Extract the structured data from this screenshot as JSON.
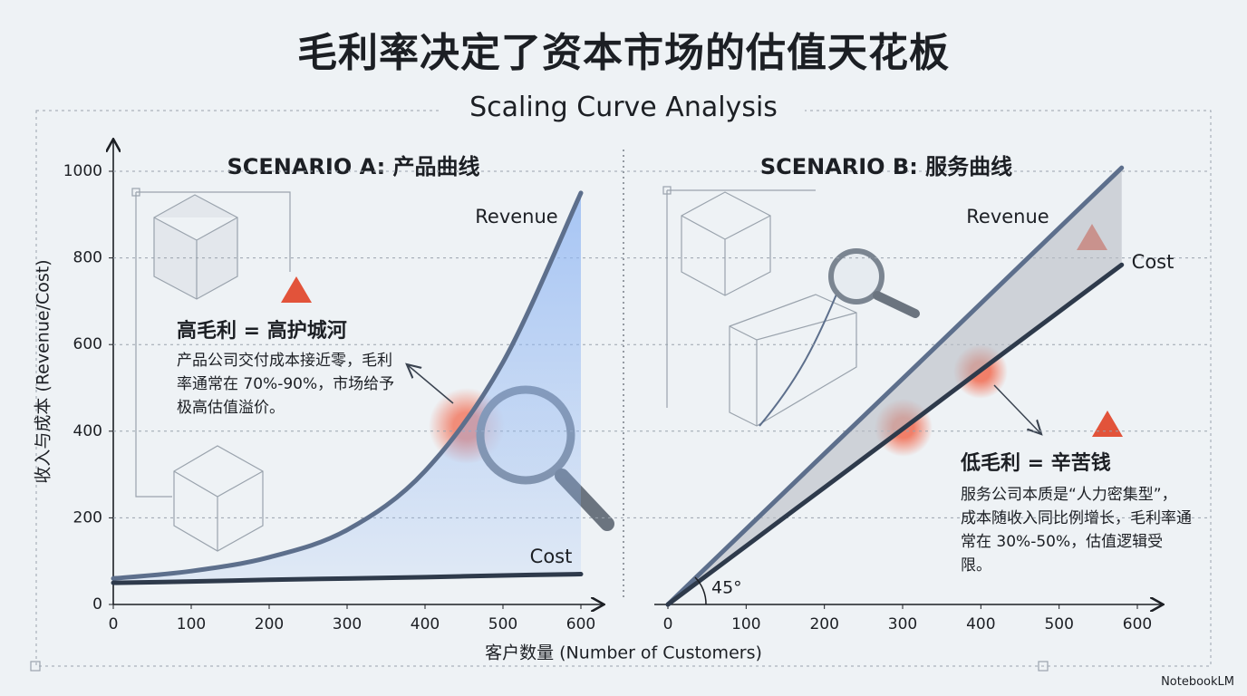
{
  "title": "毛利率决定了资本市场的估值天花板",
  "subtitle": "Scaling Curve Analysis",
  "y_label": "收入与成本 (Revenue/Cost)",
  "x_label": "客户数量 (Number of Customers)",
  "brand": "NotebookLM",
  "chart_data": [
    {
      "type": "line",
      "title": "SCENARIO A: 产品曲线",
      "x": [
        0,
        100,
        200,
        300,
        400,
        500,
        600
      ],
      "series": [
        {
          "name": "Revenue",
          "color": "#5d6f8c",
          "values": [
            60,
            77,
            109,
            172,
            308,
            559,
            950
          ]
        },
        {
          "name": "Cost",
          "color": "#2e3a4b",
          "values": [
            50,
            53,
            57,
            60,
            63,
            67,
            70
          ]
        }
      ],
      "xlim": [
        0,
        600
      ],
      "ylim": [
        0,
        1000
      ],
      "xticks": [
        0,
        100,
        200,
        300,
        400,
        500,
        600
      ],
      "yticks": [
        0,
        200,
        400,
        600,
        800,
        1000
      ],
      "grid": true,
      "fill": "#8fb6f4",
      "heading": "高毛利 = 高护城河",
      "note": "产品公司交付成本接近零，毛利率通常在 70%-90%，市场给予极高估值溢价。"
    },
    {
      "type": "line",
      "title": "SCENARIO B: 服务曲线",
      "x": [
        0,
        100,
        200,
        300,
        400,
        500,
        580
      ],
      "series": [
        {
          "name": "Revenue",
          "color": "#5d6f8c",
          "values": [
            0,
            174,
            348,
            521,
            695,
            869,
            1008
          ]
        },
        {
          "name": "Cost",
          "color": "#2e3a4b",
          "values": [
            0,
            135,
            270,
            405,
            541,
            676,
            784
          ]
        }
      ],
      "xlim": [
        0,
        600
      ],
      "ylim": [
        0,
        1000
      ],
      "xticks": [
        0,
        100,
        200,
        300,
        400,
        500,
        600
      ],
      "grid": false,
      "fill": "#b9bdc4",
      "angle_label": "45°",
      "heading": "低毛利 = 辛苦钱",
      "note": "服务公司本质是“人力密集型”，成本随收入同比例增长，毛利率通常在 30%-50%，估值逻辑受限。"
    }
  ]
}
